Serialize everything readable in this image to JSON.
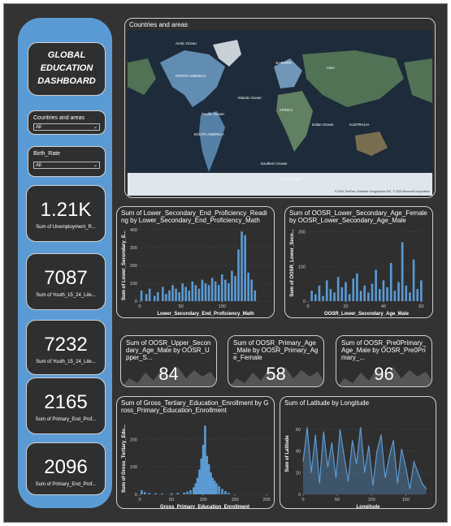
{
  "sidebar": {
    "title": "GLOBAL EDUCATION DASHBOARD",
    "slicers": [
      {
        "label": "Countries and areas",
        "value": "All"
      },
      {
        "label": "Birth_Rate",
        "value": "All"
      }
    ],
    "kpis": [
      {
        "value": "1.21K",
        "label": "Sum of Unemployment_R..."
      },
      {
        "value": 7087,
        "label": "Sum of Youth_15_24_Lite..."
      },
      {
        "value": 7232,
        "label": "Sum of Youth_15_24_Lite..."
      },
      {
        "value": 2165,
        "label": "Sum of Primary_End_Prof..."
      },
      {
        "value": 2096,
        "label": "Sum of Primary_End_Prof..."
      }
    ]
  },
  "map": {
    "title": "Countries and areas",
    "labels": [
      "Arctic Ocean",
      "ASIA",
      "EUROPE",
      "NORTH AMERICA",
      "Atlantic Ocean",
      "Pacific Ocean",
      "AFRICA",
      "Indian Ocean",
      "AUSTRALIA",
      "SOUTH AMERICA",
      "Southern Ocean",
      "ANTARCTICA"
    ],
    "attribution": "© 2024 TomTom, Earthstar Geographics SIO, © 2024 Microsoft Corporation"
  },
  "cards": [
    {
      "label": "Sum of OOSR_Upper_Secondary_Age_Male by OOSR_Upper_S...",
      "value": 84
    },
    {
      "label": "Sum of OOSR_Primary_Age_Male by OOSR_Primary_Age_Female",
      "value": 58
    },
    {
      "label": "Sum of OOSR_Pre0Primary_Age_Male by OOSR_Pre0Primary_...",
      "value": 96
    }
  ],
  "charts": [
    {
      "type": "bar",
      "title": "Sum of Lower_Secondary_End_Proficiency_Reading by Lower_Secondary_End_Proficiency_Math",
      "y_label": "Sum of Lower_Secondary_E...",
      "x_label": "Lower_Secondary_End_Proficiency_Math",
      "color": "#5b9bd5",
      "xlim": [
        0,
        160
      ],
      "xticks": [
        0,
        50,
        100
      ],
      "ylim": [
        0,
        400
      ],
      "yticks": [
        0,
        100,
        200,
        300,
        400
      ],
      "x": [
        2,
        8,
        12,
        18,
        22,
        28,
        32,
        36,
        40,
        44,
        48,
        52,
        56,
        60,
        64,
        68,
        72,
        76,
        80,
        84,
        88,
        92,
        96,
        100,
        104,
        108,
        112,
        116,
        120,
        124,
        128,
        132,
        136,
        140
      ],
      "values": [
        60,
        40,
        70,
        30,
        50,
        80,
        40,
        60,
        90,
        70,
        50,
        100,
        80,
        60,
        110,
        90,
        70,
        120,
        100,
        90,
        130,
        110,
        90,
        150,
        120,
        100,
        170,
        140,
        290,
        390,
        370,
        160,
        120,
        60
      ]
    },
    {
      "type": "bar",
      "title": "Sum of OOSR_Lower_Secondary_Age_Female by OOSR_Lower_Secondary_Age_Male",
      "y_label": "Sum of OOSR_Lower_Seco...",
      "x_label": "OOSR_Lower_Secondary_Age_Male",
      "color": "#5b9bd5",
      "xlim": [
        0,
        62
      ],
      "xticks": [
        0,
        20,
        40,
        60
      ],
      "ylim": [
        0,
        220
      ],
      "yticks": [
        0,
        100,
        200
      ],
      "x": [
        2,
        4,
        6,
        8,
        10,
        12,
        14,
        16,
        18,
        20,
        22,
        24,
        26,
        28,
        30,
        32,
        34,
        36,
        38,
        40,
        42,
        44,
        46,
        48,
        50,
        52,
        54,
        56,
        58,
        60
      ],
      "values": [
        30,
        20,
        45,
        15,
        60,
        35,
        25,
        70,
        40,
        55,
        20,
        65,
        80,
        30,
        45,
        25,
        50,
        90,
        35,
        60,
        40,
        110,
        30,
        55,
        170,
        45,
        25,
        120,
        35,
        60
      ]
    },
    {
      "type": "bar",
      "title": "Sum of Gross_Tertiary_Education_Enrollment by Gross_Primary_Education_Enrollment",
      "y_label": "Sum of Gross_Tertiary_Edu...",
      "x_label": "Gross_Primary_Education_Enrollment",
      "color": "#5b9bd5",
      "xlim": [
        0,
        205
      ],
      "xticks": [
        0,
        50,
        100,
        150,
        200
      ],
      "ylim": [
        0,
        260
      ],
      "yticks": [
        0,
        100,
        200
      ],
      "x": [
        3,
        8,
        15,
        25,
        35,
        50,
        60,
        70,
        75,
        80,
        85,
        88,
        91,
        94,
        97,
        100,
        103,
        106,
        109,
        112,
        115,
        118,
        121,
        125,
        130,
        135,
        140
      ],
      "values": [
        15,
        8,
        5,
        4,
        3,
        4,
        5,
        6,
        10,
        15,
        25,
        40,
        60,
        90,
        130,
        180,
        250,
        140,
        110,
        80,
        60,
        50,
        40,
        30,
        20,
        12,
        6
      ]
    },
    {
      "type": "line",
      "title": "Sum of Latitude by Longitude",
      "y_label": "Sum of Latitude",
      "x_label": "Longitude",
      "color": "#5b9bd5",
      "xlim": [
        0,
        190
      ],
      "xticks": [
        0,
        50,
        100,
        150
      ],
      "ylim": [
        0,
        75
      ],
      "yticks": [
        0,
        20,
        40,
        60
      ],
      "x": [
        0,
        6,
        12,
        18,
        24,
        30,
        36,
        42,
        48,
        54,
        60,
        66,
        72,
        78,
        84,
        90,
        96,
        102,
        108,
        114,
        120,
        126,
        132,
        138,
        144,
        150,
        156,
        162,
        168,
        174,
        180
      ],
      "values": [
        30,
        62,
        20,
        55,
        10,
        58,
        25,
        48,
        15,
        60,
        35,
        12,
        50,
        28,
        62,
        20,
        45,
        8,
        40,
        55,
        15,
        35,
        50,
        10,
        42,
        25,
        5,
        30,
        20,
        10,
        5
      ]
    }
  ]
}
